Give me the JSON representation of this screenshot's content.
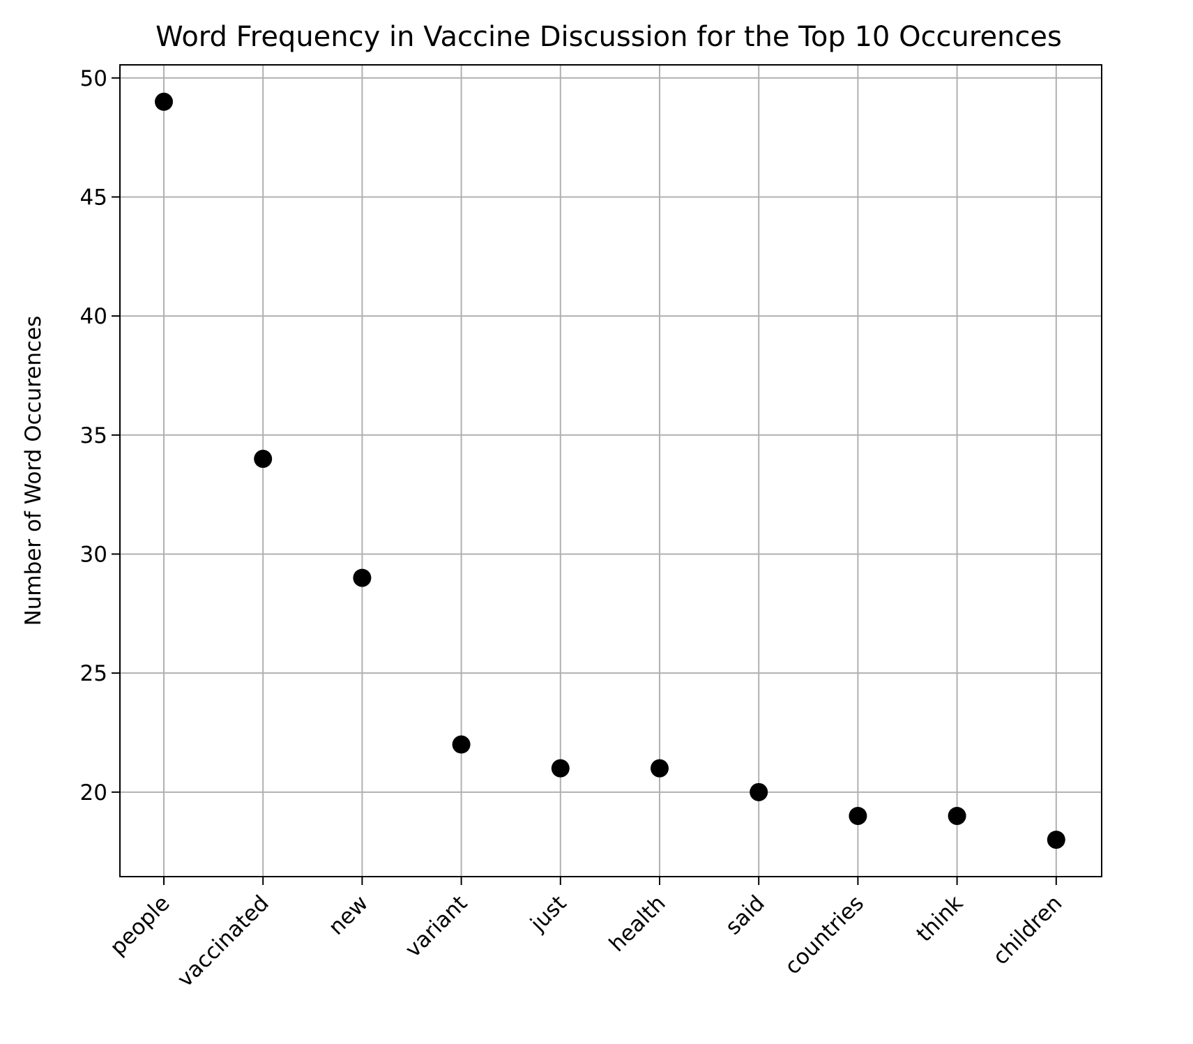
{
  "chart_data": {
    "type": "scatter",
    "title": "Word Frequency in Vaccine Discussion for the Top 10 Occurences",
    "xlabel": "",
    "ylabel": "Number of Word Occurences",
    "categories": [
      "people",
      "vaccinated",
      "new",
      "variant",
      "just",
      "health",
      "said",
      "countries",
      "think",
      "children"
    ],
    "values": [
      49,
      34,
      29,
      22,
      21,
      21,
      20,
      19,
      19,
      18
    ],
    "ylim": [
      16.45,
      50.55
    ],
    "yticks": [
      "20",
      "25",
      "30",
      "35",
      "40",
      "45",
      "50"
    ],
    "grid": true,
    "marker_color": "#000000",
    "grid_color": "#b0b0b0"
  }
}
